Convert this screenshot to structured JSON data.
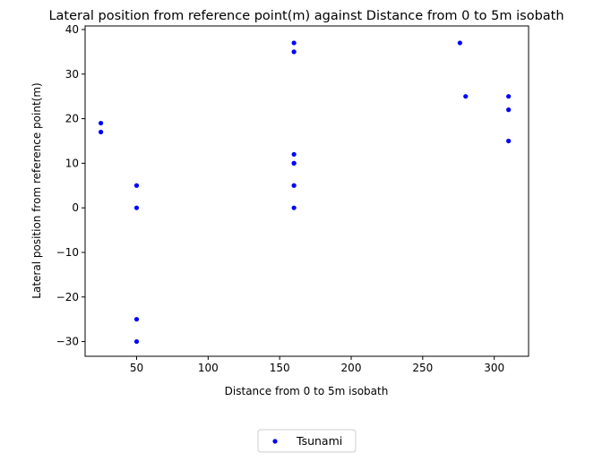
{
  "chart_data": {
    "type": "scatter",
    "title": "Lateral position from reference point(m) against Distance from 0 to 5m isobath",
    "xlabel": "Distance from 0 to 5m isobath",
    "ylabel": "Lateral position from reference point(m)",
    "xlim": [
      14,
      324
    ],
    "ylim": [
      -33.3,
      40.8
    ],
    "xticks": [
      {
        "value": 50,
        "label": "50"
      },
      {
        "value": 100,
        "label": "100"
      },
      {
        "value": 150,
        "label": "150"
      },
      {
        "value": 200,
        "label": "200"
      },
      {
        "value": 250,
        "label": "250"
      },
      {
        "value": 300,
        "label": "300"
      }
    ],
    "yticks": [
      {
        "value": -30,
        "label": "−30"
      },
      {
        "value": -20,
        "label": "−20"
      },
      {
        "value": -10,
        "label": "−10"
      },
      {
        "value": 0,
        "label": "0"
      },
      {
        "value": 10,
        "label": "10"
      },
      {
        "value": 20,
        "label": "20"
      },
      {
        "value": 30,
        "label": "30"
      },
      {
        "value": 40,
        "label": "40"
      }
    ],
    "grid": false,
    "legend_position": "bottom-center",
    "series": [
      {
        "name": "Tsunami",
        "color": "#0000ff",
        "marker": "circle",
        "points": [
          {
            "x": 25,
            "y": 19
          },
          {
            "x": 25,
            "y": 17
          },
          {
            "x": 50,
            "y": 5
          },
          {
            "x": 50,
            "y": 0
          },
          {
            "x": 50,
            "y": -25
          },
          {
            "x": 50,
            "y": -30
          },
          {
            "x": 160,
            "y": 37
          },
          {
            "x": 160,
            "y": 35
          },
          {
            "x": 160,
            "y": 12
          },
          {
            "x": 160,
            "y": 10
          },
          {
            "x": 160,
            "y": 10
          },
          {
            "x": 160,
            "y": 5
          },
          {
            "x": 160,
            "y": 0
          },
          {
            "x": 276,
            "y": 37
          },
          {
            "x": 280,
            "y": 25
          },
          {
            "x": 310,
            "y": 25
          },
          {
            "x": 310,
            "y": 22
          },
          {
            "x": 310,
            "y": 15
          }
        ]
      }
    ]
  }
}
